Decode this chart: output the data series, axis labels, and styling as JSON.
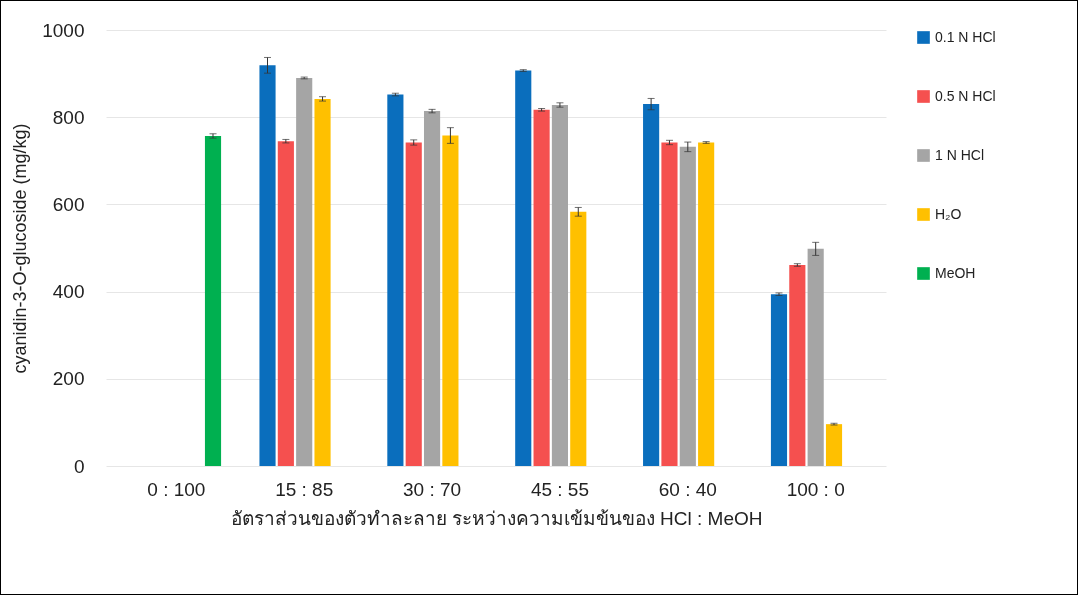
{
  "chart_data": {
    "type": "bar",
    "xlabel": "อัตราส่วนของตัวทำละลาย ระหว่างความเข้มข้นของ HCl : MeOH",
    "ylabel": "cyanidin-3-O-glucoside  (mg/kg)",
    "categories": [
      "0 : 100",
      "15 : 85",
      "30 : 70",
      "45 : 55",
      "60 : 40",
      "100 : 0"
    ],
    "series": [
      {
        "name": "0.1 N HCl",
        "color": "#0a6ebd",
        "values": [
          null,
          919,
          852,
          907,
          830,
          394
        ],
        "errors": [
          null,
          18,
          3,
          2,
          13,
          3
        ]
      },
      {
        "name": "0.5 N HCl",
        "color": "#f5504f",
        "values": [
          null,
          745,
          742,
          817,
          742,
          461
        ],
        "errors": [
          null,
          4,
          6,
          3,
          5,
          3
        ]
      },
      {
        "name": "1 N HCl",
        "color": "#a5a5a5",
        "values": [
          null,
          890,
          814,
          828,
          732,
          498
        ],
        "errors": [
          null,
          2,
          4,
          5,
          11,
          15
        ]
      },
      {
        "name": "H₂O",
        "color": "#ffc000",
        "values": [
          null,
          842,
          758,
          583,
          742,
          96
        ],
        "errors": [
          null,
          5,
          18,
          10,
          2,
          2
        ]
      },
      {
        "name": "MeOH",
        "color": "#00b050",
        "values": [
          757,
          null,
          null,
          null,
          null,
          null
        ],
        "errors": [
          5,
          null,
          null,
          null,
          null,
          null
        ]
      }
    ],
    "ylim": [
      0,
      1000
    ],
    "yticks": [
      0,
      200,
      400,
      600,
      800,
      1000
    ],
    "grid": "y",
    "legend": "right"
  }
}
